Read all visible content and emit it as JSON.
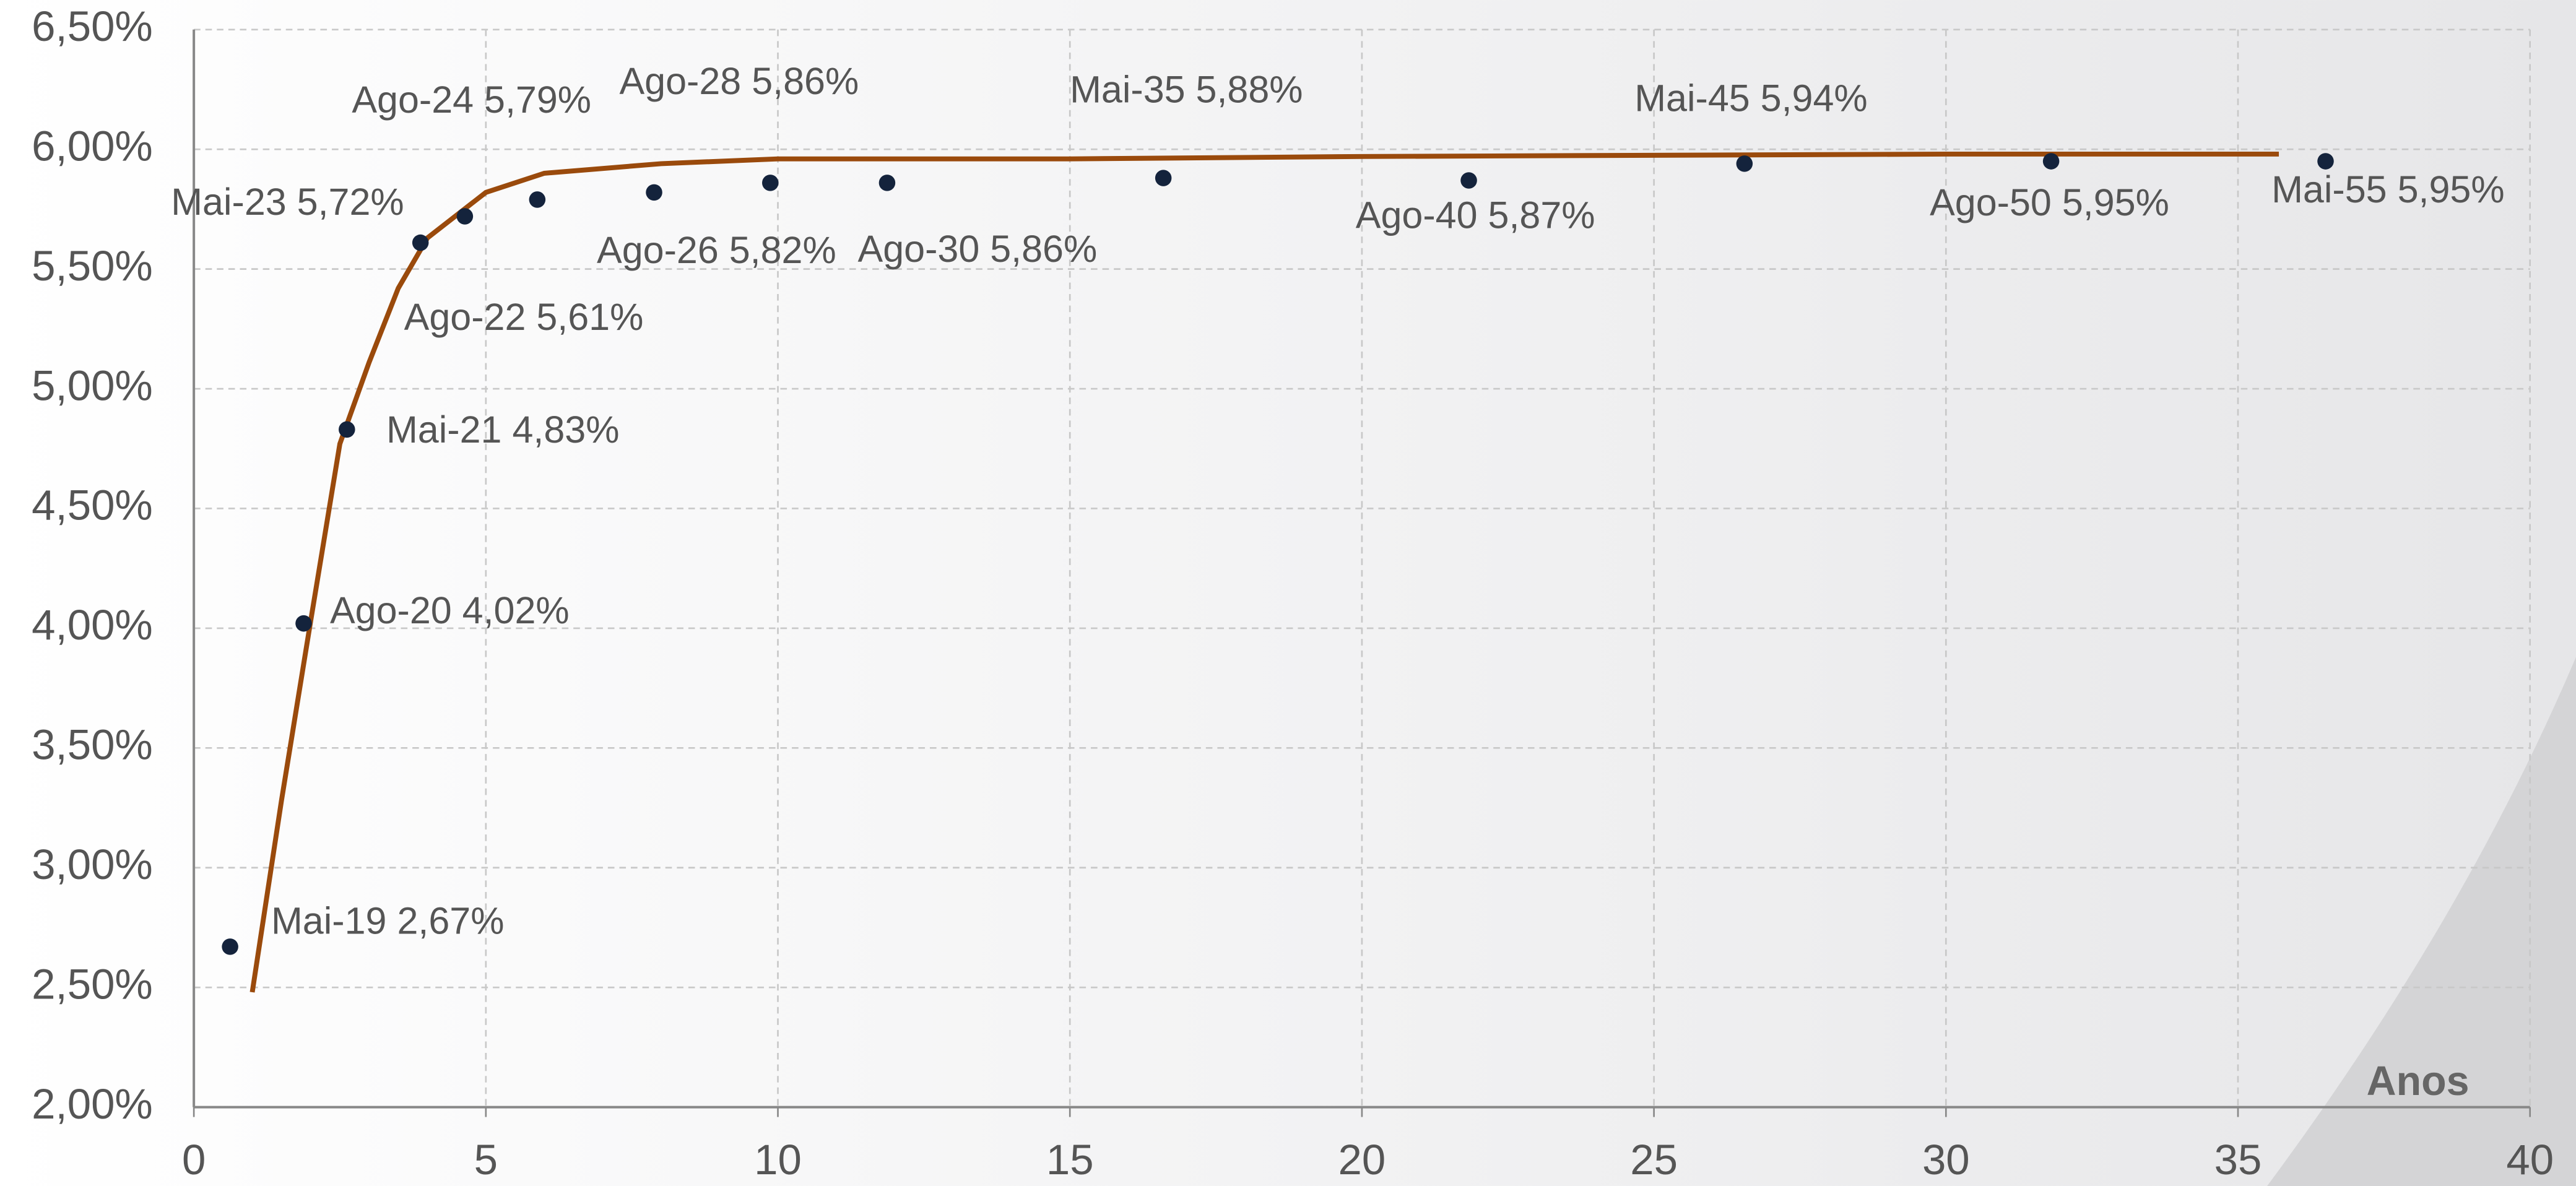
{
  "chart_data": {
    "type": "scatter",
    "x_axis_label": "Anos",
    "labels": [
      "Mai-19",
      "Ago-20",
      "Mai-21",
      "Ago-22",
      "Mai-23",
      "Ago-24",
      "Ago-26",
      "Ago-28",
      "Ago-30",
      "Mai-35",
      "Ago-40",
      "Mai-45",
      "Ago-50",
      "Mai-55"
    ],
    "x": [
      0.62,
      1.88,
      2.62,
      3.88,
      4.64,
      5.88,
      7.88,
      9.87,
      11.87,
      16.6,
      21.83,
      26.55,
      31.8,
      36.5
    ],
    "values": [
      2.67,
      4.02,
      4.83,
      5.61,
      5.72,
      5.79,
      5.82,
      5.86,
      5.86,
      5.88,
      5.87,
      5.94,
      5.95,
      5.95
    ],
    "value_labels": [
      "2,67%",
      "4,02%",
      "4,83%",
      "5,61%",
      "5,72%",
      "5,79%",
      "5,82%",
      "5,86%",
      "5,86%",
      "5,88%",
      "5,87%",
      "5,94%",
      "5,95%",
      "5,95%"
    ],
    "color": "#14233c",
    "curve": {
      "color": "#9a4a0c",
      "x": [
        1.0,
        1.5,
        2.0,
        2.5,
        3.0,
        3.5,
        4.0,
        5.0,
        6.0,
        8.0,
        10.0,
        15.0,
        20.0,
        30.0,
        35.7
      ],
      "values": [
        2.48,
        3.28,
        4.03,
        4.77,
        5.11,
        5.42,
        5.63,
        5.82,
        5.9,
        5.94,
        5.96,
        5.96,
        5.97,
        5.98,
        5.98
      ]
    },
    "xlim": [
      0,
      40
    ],
    "xticks": [
      0,
      5,
      10,
      15,
      20,
      25,
      30,
      35,
      40
    ],
    "ylim": [
      2.0,
      6.5
    ],
    "yticks": [
      {
        "value": 2.0,
        "label": "2,00%"
      },
      {
        "value": 2.5,
        "label": "2,50%"
      },
      {
        "value": 3.0,
        "label": "3,00%"
      },
      {
        "value": 3.5,
        "label": "3,50%"
      },
      {
        "value": 4.0,
        "label": "4,00%"
      },
      {
        "value": 4.5,
        "label": "4,50%"
      },
      {
        "value": 5.0,
        "label": "5,00%"
      },
      {
        "value": 5.5,
        "label": "5,50%"
      },
      {
        "value": 6.0,
        "label": "6,00%"
      },
      {
        "value": 6.5,
        "label": "6,50%"
      }
    ],
    "grid": true
  }
}
